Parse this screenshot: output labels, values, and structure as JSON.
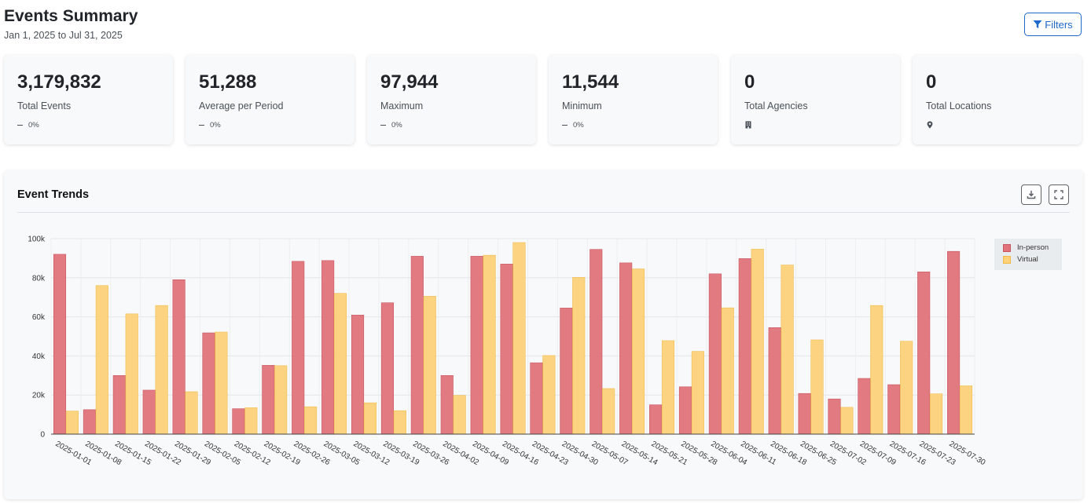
{
  "header": {
    "title": "Events Summary",
    "date_range": "Jan 1, 2025 to Jul 31, 2025",
    "filters_label": "Filters"
  },
  "stats": [
    {
      "value": "3,179,832",
      "label": "Total Events",
      "change": "0%"
    },
    {
      "value": "51,288",
      "label": "Average per Period",
      "change": "0%"
    },
    {
      "value": "97,944",
      "label": "Maximum",
      "change": "0%"
    },
    {
      "value": "11,544",
      "label": "Minimum",
      "change": "0%"
    },
    {
      "value": "0",
      "label": "Total Agencies",
      "icon": "building-icon"
    },
    {
      "value": "0",
      "label": "Total Locations",
      "icon": "location-pin-icon"
    }
  ],
  "chart_card": {
    "title": "Event Trends",
    "download_icon": "download-icon",
    "fullscreen_icon": "fullscreen-icon"
  },
  "colors": {
    "in_person": "#e0737b",
    "virtual": "#fcd27a",
    "accent": "#1d68c9"
  },
  "chart_data": {
    "type": "bar",
    "title": "Event Trends",
    "xlabel": "",
    "ylabel": "",
    "ylim": [
      0,
      100000
    ],
    "yticks": [
      0,
      20000,
      40000,
      60000,
      80000,
      100000
    ],
    "ytick_labels": [
      "0",
      "20k",
      "40k",
      "60k",
      "80k",
      "100k"
    ],
    "grid": true,
    "legend_position": "top-right",
    "categories": [
      "2025-01-01",
      "2025-01-08",
      "2025-01-15",
      "2025-01-22",
      "2025-01-29",
      "2025-02-05",
      "2025-02-12",
      "2025-02-19",
      "2025-02-26",
      "2025-03-05",
      "2025-03-12",
      "2025-03-19",
      "2025-03-26",
      "2025-04-02",
      "2025-04-09",
      "2025-04-16",
      "2025-04-23",
      "2025-04-30",
      "2025-05-07",
      "2025-05-14",
      "2025-05-21",
      "2025-05-28",
      "2025-06-04",
      "2025-06-11",
      "2025-06-18",
      "2025-06-25",
      "2025-07-02",
      "2025-07-09",
      "2025-07-16",
      "2025-07-23",
      "2025-07-30"
    ],
    "series": [
      {
        "name": "In-person",
        "values": [
          92000,
          12500,
          30000,
          22500,
          79000,
          51800,
          13000,
          35200,
          88400,
          88800,
          60900,
          67200,
          91000,
          30000,
          91000,
          87000,
          36500,
          64500,
          94500,
          87600,
          15000,
          24200,
          82000,
          89800,
          54500,
          20800,
          18000,
          28500,
          25300,
          83000,
          93500
        ]
      },
      {
        "name": "Virtual",
        "values": [
          11800,
          76000,
          61500,
          65800,
          21700,
          52200,
          13500,
          35000,
          14000,
          72000,
          16000,
          12000,
          70500,
          19800,
          91500,
          98000,
          40200,
          80200,
          23300,
          84500,
          47800,
          42300,
          64600,
          94600,
          86500,
          48200,
          13700,
          65800,
          47500,
          20600,
          24700
        ]
      }
    ]
  }
}
